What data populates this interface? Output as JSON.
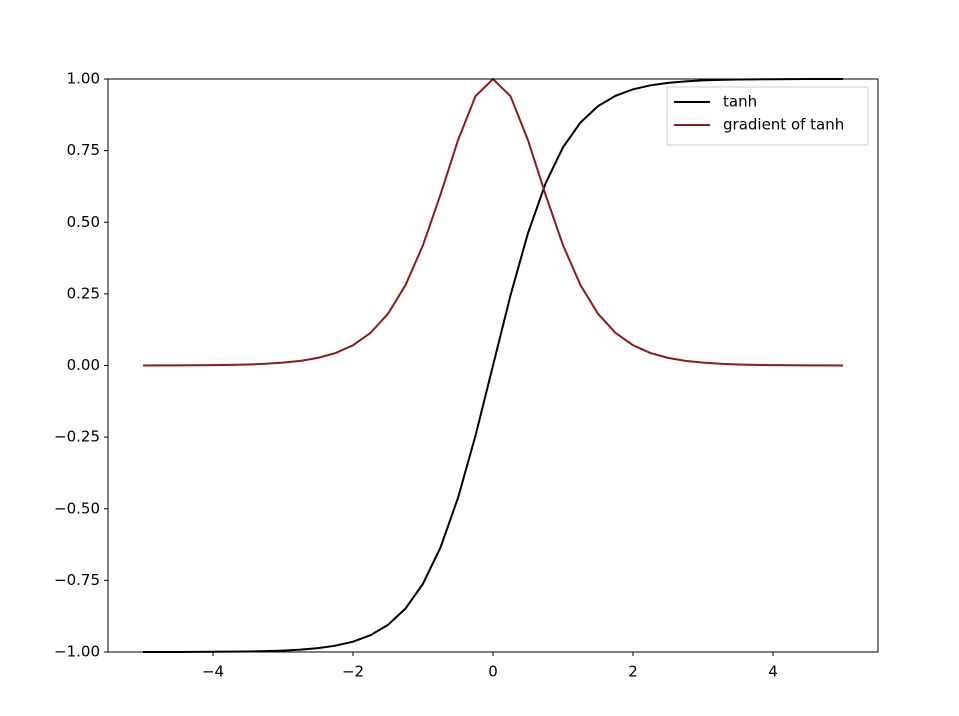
{
  "chart_data": {
    "type": "line",
    "x": [
      -5,
      -4.75,
      -4.5,
      -4.25,
      -4,
      -3.75,
      -3.5,
      -3.25,
      -3,
      -2.75,
      -2.5,
      -2.25,
      -2,
      -1.75,
      -1.5,
      -1.25,
      -1,
      -0.75,
      -0.5,
      -0.25,
      0,
      0.25,
      0.5,
      0.75,
      1,
      1.25,
      1.5,
      1.75,
      2,
      2.25,
      2.5,
      2.75,
      3,
      3.25,
      3.5,
      3.75,
      4,
      4.25,
      4.5,
      4.75,
      5
    ],
    "series": [
      {
        "name": "tanh",
        "color": "#000000",
        "values": [
          -0.9999,
          -0.9999,
          -0.9998,
          -0.9996,
          -0.9993,
          -0.9989,
          -0.9982,
          -0.997,
          -0.9951,
          -0.9919,
          -0.9866,
          -0.978,
          -0.964,
          -0.9414,
          -0.9051,
          -0.8483,
          -0.7616,
          -0.6351,
          -0.4621,
          -0.2449,
          0,
          0.2449,
          0.4621,
          0.6351,
          0.7616,
          0.8483,
          0.9051,
          0.9414,
          0.964,
          0.978,
          0.9866,
          0.9919,
          0.9951,
          0.997,
          0.9982,
          0.9989,
          0.9993,
          0.9996,
          0.9998,
          0.9999,
          0.9999
        ]
      },
      {
        "name": "gradient of tanh",
        "color": "#8b1a1a",
        "values": [
          0.0002,
          0.0003,
          0.0005,
          0.0008,
          0.0013,
          0.0022,
          0.0036,
          0.006,
          0.0099,
          0.0161,
          0.0266,
          0.0435,
          0.0707,
          0.1138,
          0.1807,
          0.2804,
          0.42,
          0.5966,
          0.7864,
          0.94,
          1,
          0.94,
          0.7864,
          0.5966,
          0.42,
          0.2804,
          0.1807,
          0.1138,
          0.0707,
          0.0435,
          0.0266,
          0.0161,
          0.0099,
          0.006,
          0.0036,
          0.0022,
          0.0013,
          0.0008,
          0.0005,
          0.0003,
          0.0002
        ]
      }
    ],
    "xlim": [
      -5.5,
      5.5
    ],
    "xticks": [
      {
        "value": -4,
        "label": "−4"
      },
      {
        "value": -2,
        "label": "−2"
      },
      0,
      2,
      4
    ],
    "ylim": [
      -1,
      1
    ],
    "yticks": [
      {
        "value": -1,
        "label": "−1.00"
      },
      {
        "value": -0.75,
        "label": "−0.75"
      },
      {
        "value": -0.5,
        "label": "−0.50"
      },
      {
        "value": -0.25,
        "label": "−0.25"
      },
      {
        "value": 0,
        "label": "0.00"
      },
      {
        "value": 0.25,
        "label": "0.25"
      },
      {
        "value": 0.5,
        "label": "0.50"
      },
      {
        "value": 0.75,
        "label": "0.75"
      },
      {
        "value": 1,
        "label": "1.00"
      }
    ],
    "grid": false,
    "legend": "upper-right"
  }
}
